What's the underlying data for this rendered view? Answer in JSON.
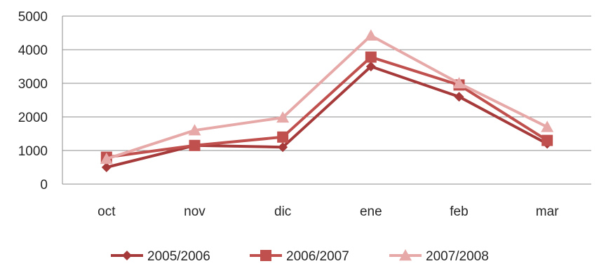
{
  "chart_data": {
    "type": "line",
    "categories": [
      "oct",
      "nov",
      "dic",
      "ene",
      "feb",
      "mar"
    ],
    "ylim": [
      0,
      5000
    ],
    "yticks": [
      "0",
      "1000",
      "2000",
      "3000",
      "4000",
      "5000"
    ],
    "grid": true,
    "legend_position": "bottom",
    "series": [
      {
        "name": "2005/2006",
        "color": "#A63A3A",
        "marker": "diamond",
        "values": [
          500,
          1150,
          1100,
          3500,
          2600,
          1200
        ]
      },
      {
        "name": "2006/2007",
        "color": "#C0504D",
        "marker": "square",
        "values": [
          800,
          1150,
          1400,
          3780,
          2950,
          1300
        ]
      },
      {
        "name": "2007/2008",
        "color": "#E6A9A8",
        "marker": "triangle",
        "values": [
          750,
          1600,
          1980,
          4420,
          3000,
          1700
        ]
      }
    ]
  }
}
